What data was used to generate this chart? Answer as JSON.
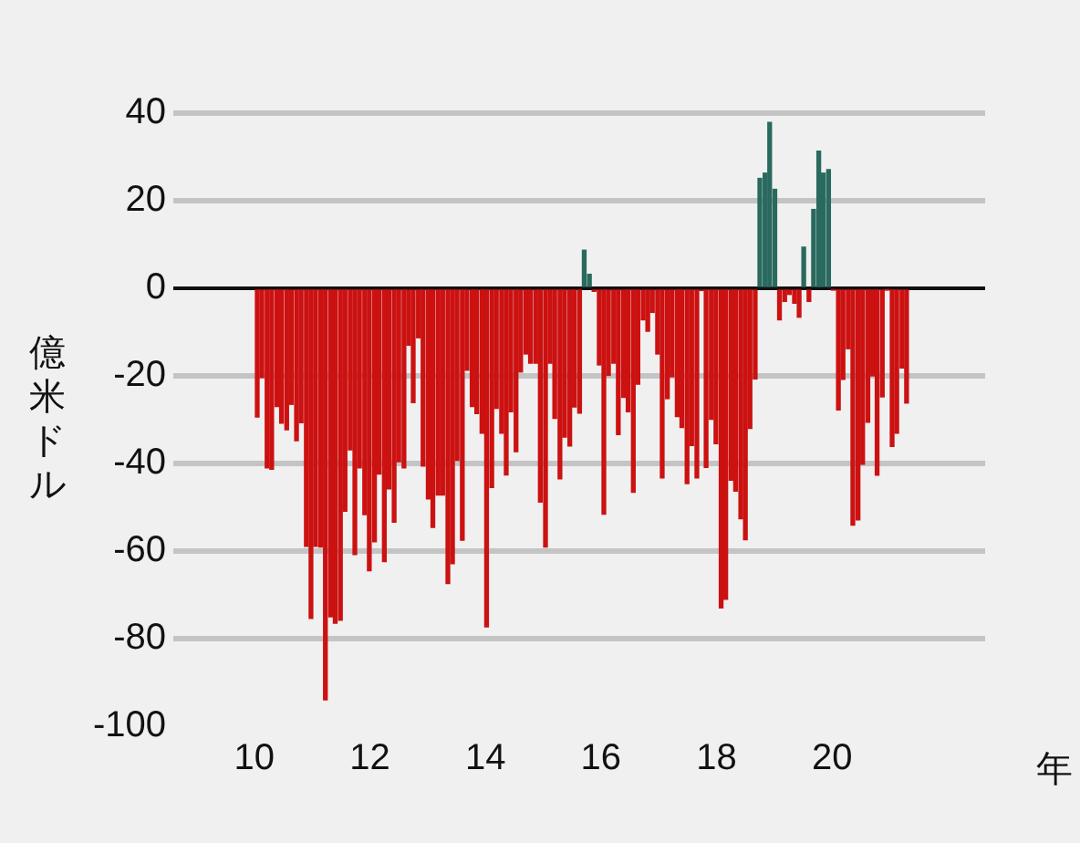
{
  "chart_data": {
    "type": "bar",
    "xlabel": "年",
    "ylabel": "億米ドル",
    "xlim": [
      10,
      21.5
    ],
    "xticks": [
      10,
      12,
      14,
      16,
      18,
      20
    ],
    "ylim": [
      -100,
      40
    ],
    "yticks": [
      -100,
      -80,
      -60,
      -40,
      -20,
      0,
      20,
      40
    ],
    "grid": "y",
    "series": [
      {
        "color": "#cc1111",
        "x": [
          10.05,
          10.13,
          10.22,
          10.3,
          10.39,
          10.47,
          10.56,
          10.64,
          10.73,
          10.81,
          10.9,
          10.98,
          11.06,
          11.15,
          11.23,
          11.32,
          11.4,
          11.49,
          11.57,
          11.66,
          11.74,
          11.82,
          11.91,
          11.99,
          12.08,
          12.16,
          12.25,
          12.33,
          12.42,
          12.5,
          12.59,
          12.67,
          12.75,
          12.84,
          12.92,
          13.01,
          13.09,
          13.18,
          13.26,
          13.35,
          13.43,
          13.51,
          13.6,
          13.68,
          13.77,
          13.85,
          13.94,
          14.02,
          14.11,
          14.19,
          14.28,
          14.36,
          14.44,
          14.53,
          14.61,
          14.7,
          14.78,
          14.87,
          14.95,
          15.04,
          15.12,
          15.2,
          15.29,
          15.37,
          15.46,
          15.54,
          15.63,
          15.88,
          15.97,
          16.05,
          16.13,
          16.22,
          16.3,
          16.39,
          16.47,
          16.56,
          16.64,
          16.73,
          16.81,
          16.89,
          16.98,
          17.06,
          17.15,
          17.23,
          17.32,
          17.4,
          17.49,
          17.57,
          17.66,
          17.74,
          17.82,
          17.91,
          17.99,
          18.08,
          18.16,
          18.25,
          18.33,
          18.42,
          18.5,
          18.58,
          18.67,
          19.09,
          19.18,
          19.26,
          19.35,
          19.43,
          19.6,
          20.02,
          20.11,
          20.19,
          20.28,
          20.36,
          20.45,
          20.53,
          20.62,
          20.7,
          20.78,
          20.87,
          20.95,
          21.04,
          21.12,
          21.21,
          21.29
        ],
        "values": [
          -29.4,
          -20.4,
          -41,
          -41.3,
          -27,
          -30.8,
          -32.3,
          -26.5,
          -34.8,
          -30.7,
          -58.9,
          -75.4,
          -58.9,
          -59.1,
          -94,
          -75,
          -76.5,
          -75.8,
          -50.9,
          -36.9,
          -60.8,
          -41,
          -51.7,
          -64.5,
          -57.9,
          -42.4,
          -62.4,
          -45.8,
          -53.4,
          -39.6,
          -41,
          -13,
          -26.1,
          -11.3,
          -40.6,
          -48.1,
          -54.6,
          -47.2,
          -47.2,
          -67.4,
          -62.9,
          -39.3,
          -57.5,
          -18.7,
          -27,
          -28.6,
          -33.1,
          -77.3,
          -45.5,
          -27.4,
          -33.1,
          -42.6,
          -28.2,
          -37.3,
          -19.1,
          -15,
          -17.1,
          -17.1,
          -48.8,
          -59.1,
          -17.1,
          -29.7,
          -43.5,
          -34,
          -36,
          -27.1,
          -28.5,
          -0.7,
          -17.5,
          -51.6,
          -19.9,
          -17.1,
          -33.4,
          -24.9,
          -28.2,
          -46.6,
          -21.9,
          -7.2,
          -9.8,
          -5.5,
          -15,
          -43.3,
          -25.2,
          -20.2,
          -29.3,
          -31.8,
          -44.6,
          -35.9,
          -43.3,
          -0.5,
          -40.9,
          -29.9,
          -35.5,
          -73,
          -71,
          -43.8,
          -46.3,
          -52.6,
          -57.4,
          -32,
          -20.7,
          -7.2,
          -3,
          -1.4,
          -3.4,
          -6.6,
          -3,
          -0.3,
          -27.8,
          -20.8,
          -13.8,
          -54.1,
          -52.9,
          -40.2,
          -30.6,
          -20,
          -42.7,
          -24.8,
          -0.3,
          -36.1,
          -33.1,
          -18.2,
          -26.2
        ]
      },
      {
        "color": "#2a6a5e",
        "x": [
          15.71,
          15.8,
          18.75,
          18.84,
          18.92,
          19.01,
          19.51,
          19.68,
          19.77,
          19.85,
          19.94
        ],
        "values": [
          8.7,
          3.2,
          25.1,
          26.3,
          37.9,
          22.6,
          9.4,
          18,
          31.3,
          26.3,
          27.1
        ]
      }
    ]
  }
}
